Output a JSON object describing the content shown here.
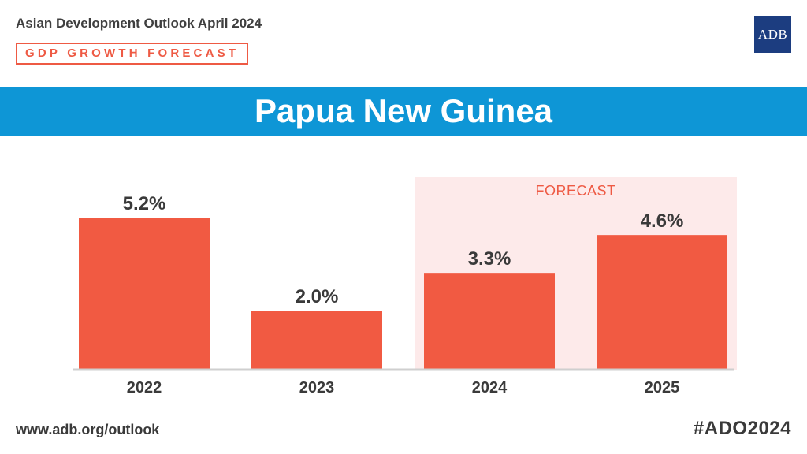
{
  "header": {
    "publication": "Asian Development Outlook April 2024",
    "tag": "GDP GROWTH FORECAST"
  },
  "logo": {
    "text": "ADB"
  },
  "banner": {
    "title": "Papua New Guinea"
  },
  "colors": {
    "bar": "#f15a42",
    "forecast_band": "#fdeaea",
    "forecast_label": "#ee5a44",
    "banner": "#0e96d6",
    "logo": "#1c3d80",
    "text_dark": "#3a3a3a"
  },
  "chart_data": {
    "type": "bar",
    "categories": [
      "2022",
      "2023",
      "2024",
      "2025"
    ],
    "values": [
      5.2,
      2.0,
      3.3,
      4.6
    ],
    "data_labels": [
      "5.2%",
      "2.0%",
      "3.3%",
      "4.6%"
    ],
    "unit": "%",
    "ylim": [
      0,
      5.2
    ],
    "grid": false,
    "forecast_label": "FORECAST",
    "forecast_categories": [
      "2024",
      "2025"
    ]
  },
  "footer": {
    "url": "www.adb.org/outlook",
    "hashtag": "#ADO2024"
  }
}
